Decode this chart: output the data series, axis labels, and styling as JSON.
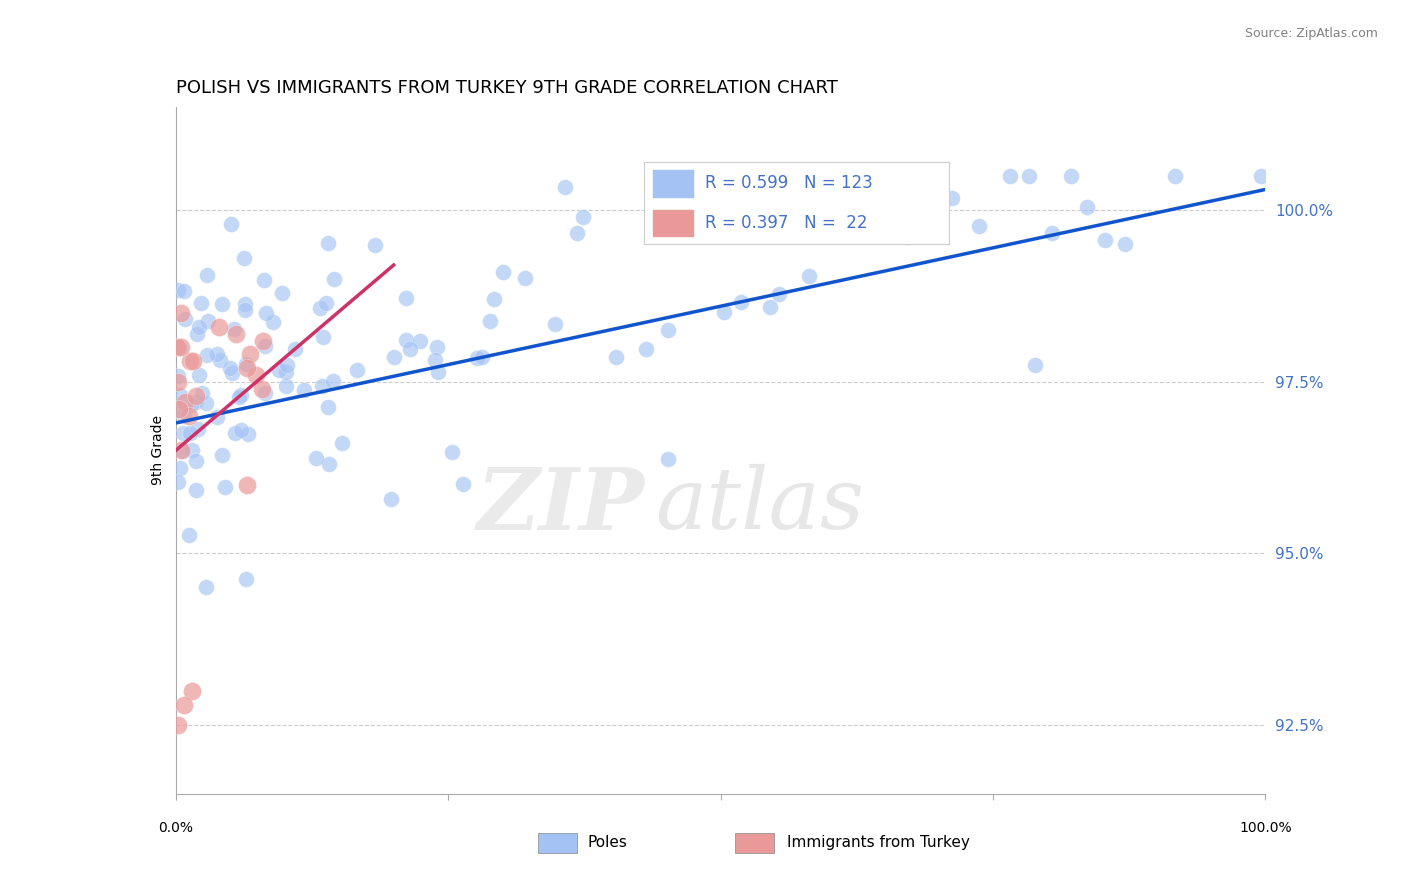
{
  "title": "POLISH VS IMMIGRANTS FROM TURKEY 9TH GRADE CORRELATION CHART",
  "source": "Source: ZipAtlas.com",
  "ylabel": "9th Grade",
  "xaxis_label_poles": "Poles",
  "xaxis_label_immig": "Immigrants from Turkey",
  "xlim": [
    0.0,
    100.0
  ],
  "ylim": [
    91.5,
    101.5
  ],
  "yticks": [
    92.5,
    95.0,
    97.5,
    100.0
  ],
  "ytick_labels": [
    "92.5%",
    "95.0%",
    "97.5%",
    "100.0%"
  ],
  "blue_R": 0.599,
  "blue_N": 123,
  "pink_R": 0.397,
  "pink_N": 22,
  "blue_color": "#a4c2f4",
  "pink_color": "#ea9999",
  "blue_line_color": "#1155cc",
  "pink_line_color": "#cc3366",
  "background_color": "#ffffff",
  "grid_color": "#cccccc",
  "blue_line_y_start": 96.9,
  "blue_line_y_end": 100.3,
  "pink_line_y_start": 96.5,
  "pink_line_y_end": 99.2,
  "pink_line_x_end": 20.0,
  "title_fontsize": 13,
  "axis_fontsize": 10,
  "legend_fontsize": 12
}
